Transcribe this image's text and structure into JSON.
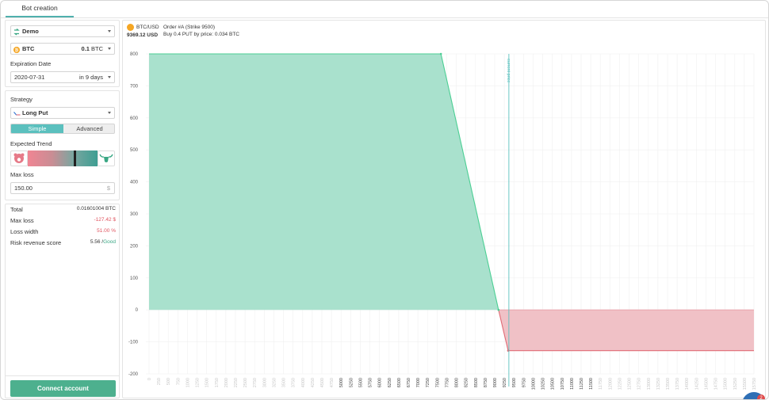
{
  "tabs": {
    "active_label": "Bot creation"
  },
  "account": {
    "value": "Demo"
  },
  "asset": {
    "name": "BTC",
    "amount": "0.1",
    "unit": "BTC"
  },
  "expiration": {
    "label": "Expiration Date",
    "date": "2020-07-31",
    "countdown": "in 9 days"
  },
  "strategy": {
    "label": "Strategy",
    "value": "Long Put",
    "mode_simple": "Simple",
    "mode_advanced": "Advanced",
    "selected_mode": "Simple"
  },
  "trend": {
    "label": "Expected Trend",
    "position": 0.62
  },
  "max_loss": {
    "label": "Max loss",
    "value": "150.00",
    "unit": "$"
  },
  "summary": [
    {
      "key": "Total",
      "value": "0.01601004 BTC",
      "tone": "plain"
    },
    {
      "key": "Max loss",
      "value": "-127.42 $",
      "tone": "red"
    },
    {
      "key": "Loss width",
      "value": "51.00 %",
      "tone": "red"
    },
    {
      "key": "Risk revenue score",
      "value": "5.56 /",
      "extra": "Good",
      "tone": "plain"
    }
  ],
  "connect_label": "Connect account",
  "chart_header": {
    "pair": "BTC/USD",
    "price": "9369.12 USD",
    "order_title": "Order #A (Strike 9500)",
    "order_desc": "Buy 0.4 PUT by price: 0.034 BTC"
  },
  "chat_badge": "2",
  "colors": {
    "accent": "#5bc0be",
    "profit": "#a9e1cd",
    "loss": "#f0c1c6",
    "profit_line": "#4ccf94",
    "loss_line": "#e06a75",
    "current_price": "#5bc0be",
    "connect": "#4db08e"
  },
  "chart_data": {
    "type": "area",
    "title": "",
    "xlabel": "",
    "ylabel": "",
    "ylim": [
      -200,
      800
    ],
    "yticks": [
      800,
      700,
      600,
      500,
      400,
      300,
      200,
      100,
      0,
      -100,
      -200
    ],
    "xlim": [
      0,
      15750
    ],
    "xticks": [
      "0",
      "250",
      "500",
      "750",
      "1000",
      "1250",
      "1500",
      "1750",
      "2000",
      "2250",
      "2500",
      "2750",
      "3000",
      "3250",
      "3500",
      "3750",
      "4000",
      "4250",
      "4500",
      "4750",
      "5000",
      "5250",
      "5500",
      "5750",
      "6000",
      "6250",
      "6500",
      "6750",
      "7000",
      "7250",
      "7500",
      "7750",
      "8000",
      "8250",
      "8500",
      "8750",
      "9000",
      "9250",
      "9500",
      "9750",
      "10000",
      "10250",
      "10500",
      "10750",
      "11000",
      "11250",
      "11500",
      "11750",
      "12000",
      "12250",
      "12500",
      "12750",
      "13000",
      "13250",
      "13500",
      "13750",
      "14000",
      "14250",
      "14500",
      "14750",
      "15000",
      "15250",
      "15500",
      "15750"
    ],
    "highlighted_ticks": [
      "5000",
      "5250",
      "5500",
      "5750",
      "6000",
      "6250",
      "6500",
      "6750",
      "7000",
      "7250",
      "7500",
      "7750",
      "8000",
      "8250",
      "8500",
      "8750",
      "9000",
      "9250",
      "9500",
      "9750",
      "10000",
      "10250",
      "10500",
      "10750",
      "11000",
      "11250",
      "11500"
    ],
    "payoff_series": {
      "name": "",
      "x": [
        0,
        7600,
        9100,
        9350,
        15750
      ],
      "y": [
        800,
        800,
        0,
        -127.42,
        -127.42
      ]
    },
    "current_price": {
      "x": 9369.12,
      "label": "current price"
    },
    "grid": true
  }
}
